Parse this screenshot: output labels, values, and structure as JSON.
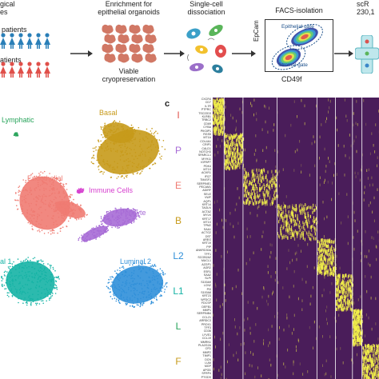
{
  "top_row": {
    "step1": {
      "line1": "gical",
      "line2": "es",
      "group_a": "patients",
      "group_b": "atients"
    },
    "step2": {
      "title_line1": "Enrichment for",
      "title_line2": "epithelial organoids",
      "caption_line1": "Viable",
      "caption_line2": "cryopreservation"
    },
    "step3": {
      "title_line1": "Single-cell",
      "title_line2": "dissociation"
    },
    "step4": {
      "title": "FACS-isolation",
      "ylabel": "EpCam",
      "xlabel": "CD49f",
      "gate_epithelial": "Epithelial gate",
      "gate_stromal": "Stromal gate"
    },
    "step5": {
      "title_line1": "scR",
      "title_line2": "230,1"
    }
  },
  "colors": {
    "female_blue": "#2a7fb8",
    "female_red": "#e0504a",
    "organoid": "#c9604a",
    "arrow": "#333333",
    "basal": "#c79a1a",
    "endothelial": "#ef7b72",
    "immune": "#d63fcf",
    "pericyte": "#a76bd6",
    "luminal1": "#15b3a5",
    "luminal2": "#2f8fd9",
    "lymphatic": "#27a35a",
    "heat_low": "#4a1d5a",
    "heat_high": "#f2f04a"
  },
  "umap": {
    "labels": {
      "lymphatic": "Lymphatic",
      "basal": "Basal",
      "endothelial": "Endothelial",
      "immune": "Immune Cells",
      "pericyte": "Pericyte",
      "luminal1": "al 1",
      "luminal2": "Luminal 2"
    }
  },
  "heatmap": {
    "panel_letter": "c",
    "groups": [
      {
        "letter": "I",
        "color": "#e0504a",
        "genes": [
          "CXCR4",
          "CD7",
          "IL7R",
          "PTPRC",
          "TSC22D3",
          "KLRB1",
          "TRBC2",
          "CD69",
          "CYBA",
          "PIK3IP1"
        ]
      },
      {
        "letter": "P",
        "color": "#a76bd6",
        "genes": [
          "RGS5",
          "MT1A",
          "COL4A1",
          "CRIP1",
          "CALD1",
          "NOTCH3",
          "SPARCL1",
          "MYH11",
          "IGFBP7",
          "PDK4"
        ]
      },
      {
        "letter": "E",
        "color": "#ef7b72",
        "genes": [
          "MT1X",
          "ACKR1",
          "IFI27",
          "TM4SF1",
          "SERPINE1",
          "PECAM1",
          "ADIRF",
          "SELE",
          "VWF",
          "AQP1"
        ]
      },
      {
        "letter": "B",
        "color": "#c79a1a",
        "genes": [
          "KRT14",
          "TAGLN",
          "ACTA2",
          "MYLK",
          "KRT17",
          "MT1X",
          "TPM2",
          "SAA1",
          "ACTG2",
          "DST"
        ]
      },
      {
        "letter": "L2",
        "color": "#2f8fd9",
        "genes": [
          "AREG",
          "KRT19",
          "PIP",
          "ANKRD30A",
          "TFF1",
          "SCGB2A2",
          "MUCL1",
          "AZGP1",
          "AGR2",
          "ESR1"
        ]
      },
      {
        "letter": "L1",
        "color": "#15b3a5",
        "genes": [
          "SAA2",
          "SLPI",
          "S100A9",
          "LCN2",
          "PI3",
          "S100A8",
          "KRT23",
          "WFDC2",
          "FDCSP",
          "DEFB1"
        ]
      },
      {
        "letter": "L",
        "color": "#27a35a",
        "genes": [
          "MMP1",
          "SERPINB4",
          "CCL21",
          "ARRDC3",
          "PROX1",
          "TFF3",
          "CD36",
          "LYVE1",
          "CCL19",
          "MMRN1"
        ]
      },
      {
        "letter": "F",
        "color": "#c79a1a",
        "genes": [
          "PLA2G2A",
          "CFD",
          "MMP2",
          "TIMP1",
          "DCN",
          "LUM",
          "MGP",
          "APOD",
          "SFRP4",
          "PTGDS"
        ]
      }
    ]
  }
}
